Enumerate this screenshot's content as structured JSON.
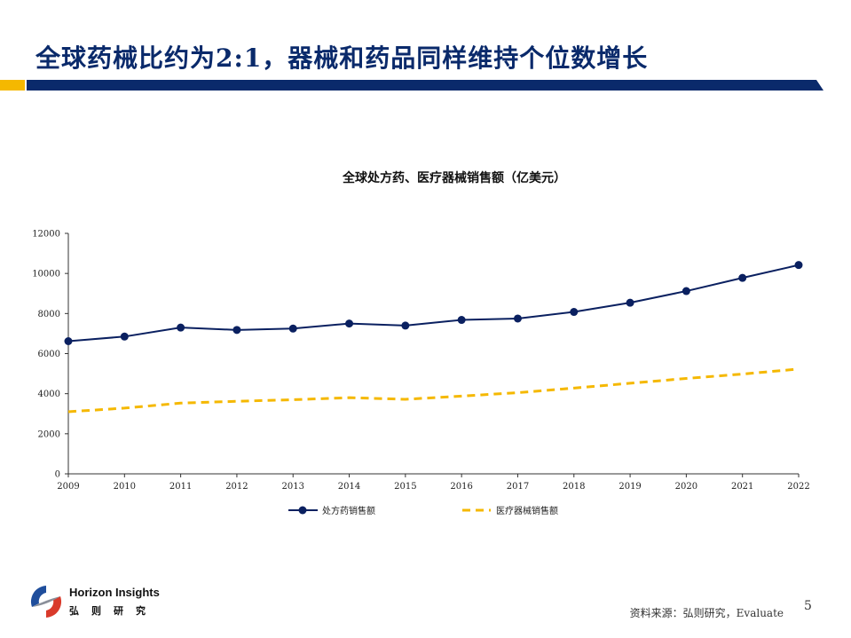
{
  "slide": {
    "title": "全球药械比约为2:1，器械和药品同样维持个位数增长",
    "source": "资料来源：弘则研究，Evaluate",
    "page_number": "5"
  },
  "logo": {
    "name_en": "Horizon Insights",
    "name_cn": "弘则研究"
  },
  "colors": {
    "title": "#0a2a6b",
    "bar_navy": "#0a2a6b",
    "bar_gold": "#f5b800",
    "series_rx": "#0a2060",
    "series_device": "#f5b800"
  },
  "chart_data": {
    "type": "line",
    "title": "全球处方药、医疗器械销售额（亿美元）",
    "categories": [
      "2009",
      "2010",
      "2011",
      "2012",
      "2013",
      "2014",
      "2015",
      "2016",
      "2017",
      "2018",
      "2019",
      "2020",
      "2021",
      "2022"
    ],
    "series": [
      {
        "name": "处方药销售额",
        "color": "#0a2060",
        "style": "solid-marker",
        "values": [
          6620,
          6850,
          7300,
          7180,
          7250,
          7500,
          7400,
          7680,
          7750,
          8080,
          8540,
          9120,
          9780,
          10420
        ]
      },
      {
        "name": "医疗器械销售额",
        "color": "#f5b800",
        "style": "dashed",
        "values": [
          3100,
          3280,
          3530,
          3620,
          3700,
          3800,
          3720,
          3880,
          4050,
          4280,
          4520,
          4760,
          4980,
          5230
        ]
      }
    ],
    "ylim": [
      0,
      12000
    ],
    "yticks": [
      0,
      2000,
      4000,
      6000,
      8000,
      10000,
      12000
    ],
    "grid": false,
    "legend_position": "bottom"
  }
}
